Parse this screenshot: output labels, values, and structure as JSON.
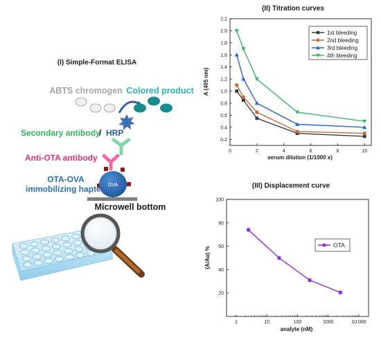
{
  "left_panel": {
    "title": "(I) Simple-Format ELISA",
    "abts_label": "ABTS chromogen",
    "colored_label": "Colored product",
    "secondary_label": "Secondary antibody",
    "slash": "/",
    "hrp_label": "HRP",
    "anti_ota_label": "Anti-OTA antibody",
    "ota_ova_label_1": "OTA-OVA",
    "ota_ova_label_2": "immobilizing hapten",
    "ova_label": "OVA",
    "microwell_label": "Microwell bottom",
    "colors": {
      "abts": "#a6a6a6",
      "colored": "#2bb3b3",
      "secondary": "#2fb45a",
      "hrp": "#2b5ea8",
      "anti_ota": "#e0307a",
      "ota_ova": "#2a6fb8",
      "ova_ball": "#2e6fb5"
    }
  },
  "chart_data": [
    {
      "type": "line",
      "title": "(II) Titration curves",
      "xlabel": "serum dilution (1/1000 x)",
      "ylabel": "A (405 nm)",
      "xlim": [
        0,
        10.5
      ],
      "ylim": [
        0.1,
        2.2
      ],
      "xticks": [
        0,
        2,
        4,
        6,
        8,
        10
      ],
      "yticks": [
        0.2,
        0.4,
        0.6,
        0.8,
        1.0,
        1.2,
        1.4,
        1.6,
        1.8,
        2.0,
        2.2
      ],
      "ytick_labels": [
        "0.2",
        "0.4",
        "0.6",
        "0.8",
        "1.0",
        "1.2",
        "1.4",
        "1.6",
        "1.8",
        "2.0",
        "2.2"
      ],
      "legend_position": "top-right",
      "x": [
        0.5,
        1,
        2,
        5,
        10
      ],
      "series": [
        {
          "name": "1st bleeding",
          "marker": "square",
          "color": "#3d3d3d",
          "values": [
            1.0,
            0.85,
            0.55,
            0.3,
            0.25
          ]
        },
        {
          "name": "2nd bleeding",
          "marker": "circle",
          "color": "#c86a3a",
          "values": [
            1.1,
            0.9,
            0.65,
            0.33,
            0.3
          ]
        },
        {
          "name": "3rd bleeding",
          "marker": "triangle-up",
          "color": "#2e5fd4",
          "values": [
            1.6,
            1.2,
            0.8,
            0.45,
            0.4
          ]
        },
        {
          "name": "4th bleeding",
          "marker": "triangle-down",
          "color": "#3db36b",
          "values": [
            2.0,
            1.7,
            1.2,
            0.65,
            0.5
          ]
        }
      ]
    },
    {
      "type": "line",
      "title": "(III) Displacement curve",
      "xlabel": "analyte (nM)",
      "ylabel": "(A/Ao) %",
      "xscale": "log",
      "xlim": [
        1,
        10000
      ],
      "ylim": [
        0,
        100
      ],
      "xticks": [
        1,
        10,
        100,
        1000,
        10000
      ],
      "xtick_labels": [
        "1",
        "10",
        "100",
        "1000",
        "10,000"
      ],
      "yticks": [
        20,
        40,
        60,
        80,
        100
      ],
      "legend_position": "right",
      "x": [
        2.5,
        25,
        250,
        2500
      ],
      "series": [
        {
          "name": "OTA",
          "marker": "square",
          "color": "#8a2be2",
          "values": [
            74,
            50,
            31,
            20.5
          ]
        }
      ]
    }
  ]
}
